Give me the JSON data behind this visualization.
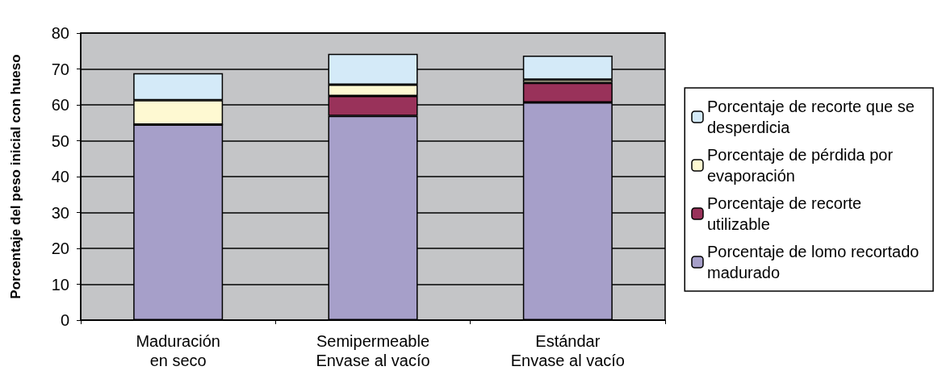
{
  "chart_data": {
    "type": "bar",
    "stacked": true,
    "ylabel": "Porcentaje del peso inicial con hueso",
    "categories": [
      "Maduración\nen seco",
      "Semipermeable\nEnvase al vacío",
      "Estándar\nEnvase al vacío"
    ],
    "series": [
      {
        "name": "Porcentaje de lomo recortado madurado",
        "color": "#a69fc9",
        "values": [
          54.5,
          56.9,
          60.7
        ]
      },
      {
        "name": "Porcentaje de recorte utilizable",
        "color": "#99325a",
        "values": [
          0,
          5.6,
          5.4
        ]
      },
      {
        "name": "Porcentaje de pérdida por evaporación",
        "color": "#fef9d2",
        "values": [
          6.8,
          3.1,
          0.9
        ]
      },
      {
        "name": "Porcentaje de recorte que se desperdicia",
        "color": "#d4eaf8",
        "values": [
          7.5,
          8.6,
          6.7
        ]
      }
    ],
    "ylim": [
      0,
      80
    ],
    "yticks": [
      0,
      10,
      20,
      30,
      40,
      50,
      60,
      70,
      80
    ],
    "grid": "y",
    "legend": "right"
  }
}
